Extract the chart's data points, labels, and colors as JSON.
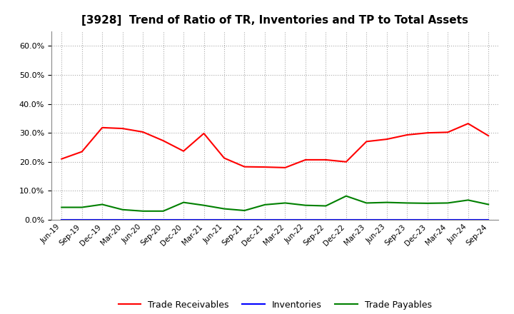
{
  "title": "[3928]  Trend of Ratio of TR, Inventories and TP to Total Assets",
  "x_labels": [
    "Jun-19",
    "Sep-19",
    "Dec-19",
    "Mar-20",
    "Jun-20",
    "Sep-20",
    "Dec-20",
    "Mar-21",
    "Jun-21",
    "Sep-21",
    "Dec-21",
    "Mar-22",
    "Jun-22",
    "Sep-22",
    "Dec-22",
    "Mar-23",
    "Jun-23",
    "Sep-23",
    "Dec-23",
    "Mar-24",
    "Jun-24",
    "Sep-24"
  ],
  "trade_receivables": [
    0.21,
    0.235,
    0.318,
    0.315,
    0.303,
    0.273,
    0.237,
    0.298,
    0.213,
    0.183,
    0.182,
    0.18,
    0.207,
    0.207,
    0.2,
    0.27,
    0.278,
    0.293,
    0.3,
    0.302,
    0.332,
    0.29
  ],
  "inventories": [
    0.001,
    0.001,
    0.001,
    0.001,
    0.001,
    0.001,
    0.001,
    0.001,
    0.001,
    0.001,
    0.001,
    0.001,
    0.001,
    0.001,
    0.001,
    0.001,
    0.001,
    0.001,
    0.001,
    0.001,
    0.001,
    0.001
  ],
  "trade_payables": [
    0.043,
    0.043,
    0.053,
    0.035,
    0.03,
    0.03,
    0.06,
    0.05,
    0.038,
    0.032,
    0.052,
    0.058,
    0.05,
    0.048,
    0.082,
    0.058,
    0.06,
    0.058,
    0.057,
    0.058,
    0.068,
    0.053
  ],
  "tr_color": "#FF0000",
  "inv_color": "#0000FF",
  "tp_color": "#008000",
  "ylim": [
    0.0,
    0.65
  ],
  "yticks": [
    0.0,
    0.1,
    0.2,
    0.3,
    0.4,
    0.5,
    0.6
  ],
  "background_color": "#ffffff",
  "grid_color": "#aaaaaa",
  "legend_labels": [
    "Trade Receivables",
    "Inventories",
    "Trade Payables"
  ]
}
